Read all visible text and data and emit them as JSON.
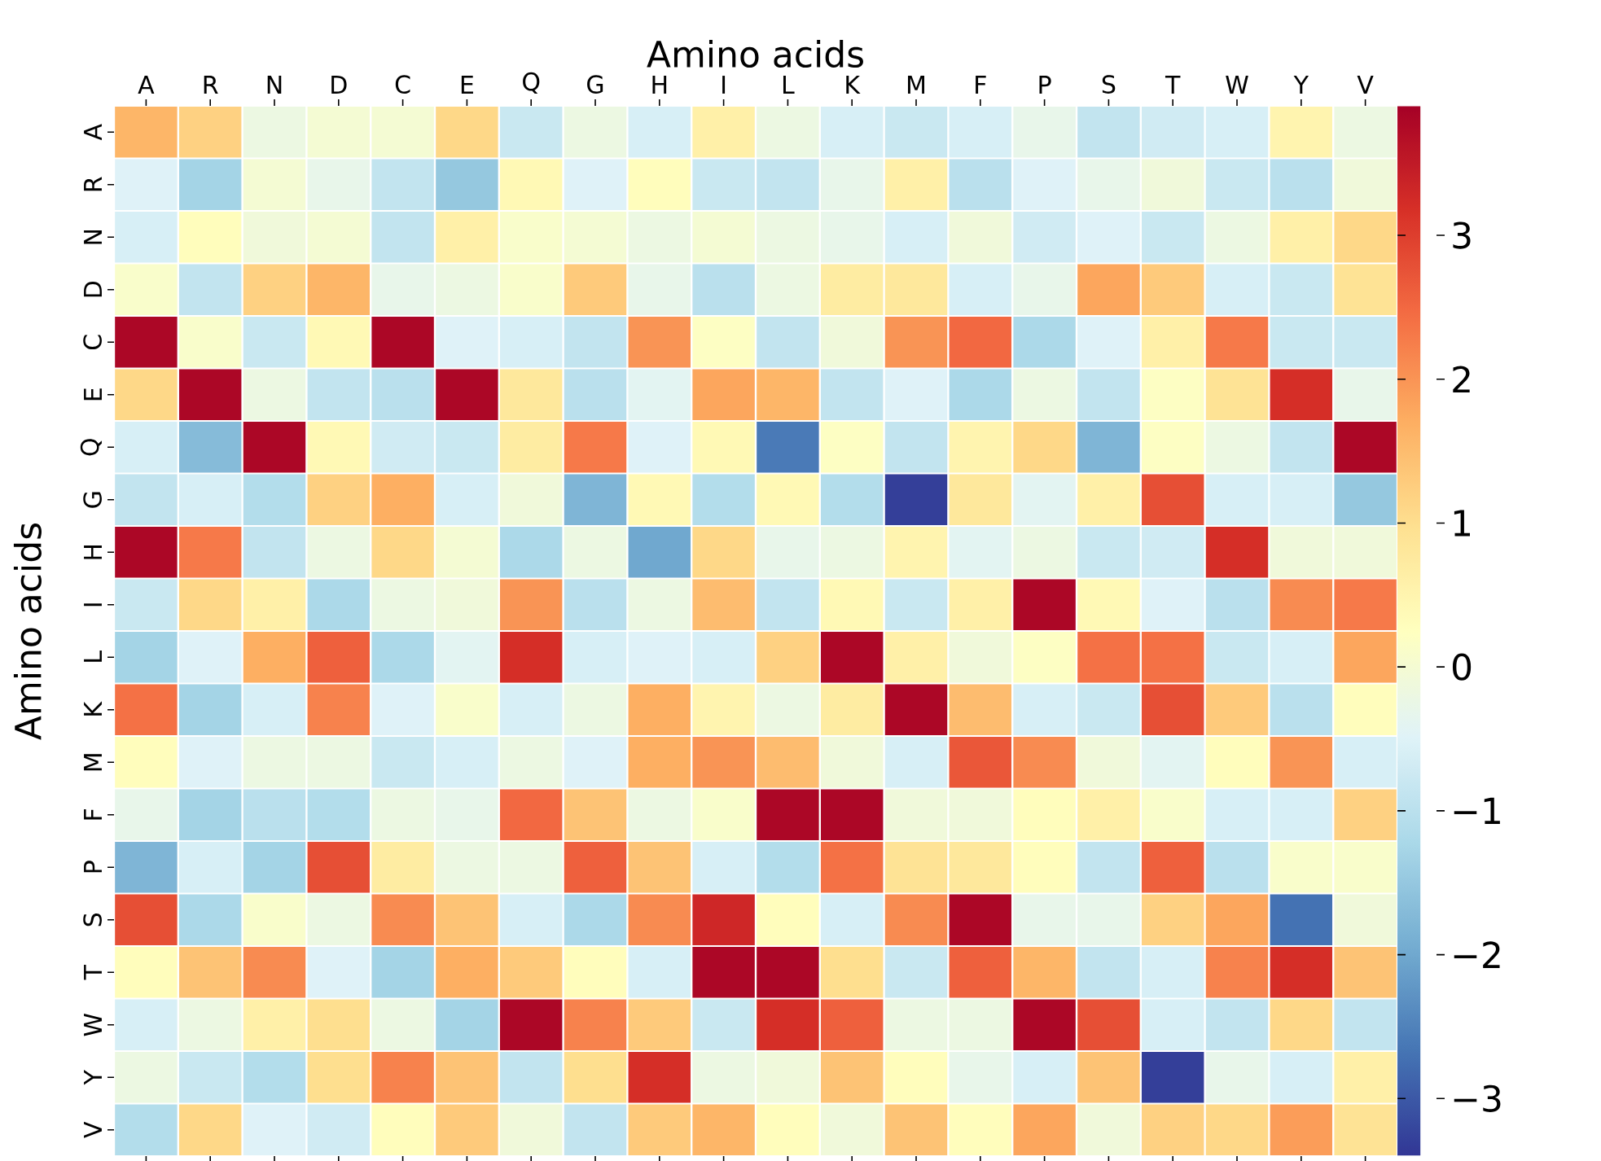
{
  "chart_data": {
    "type": "heatmap",
    "xlabel": "Amino acids",
    "ylabel": "Amino acids",
    "categories": [
      "A",
      "R",
      "N",
      "D",
      "C",
      "E",
      "Q",
      "G",
      "H",
      "I",
      "L",
      "K",
      "M",
      "F",
      "P",
      "S",
      "T",
      "W",
      "Y",
      "V"
    ],
    "y_categories": [
      "A",
      "R",
      "N",
      "D",
      "C",
      "E",
      "Q",
      "G",
      "H",
      "I",
      "L",
      "K",
      "M",
      "F",
      "P",
      "S",
      "T",
      "W",
      "Y",
      "V"
    ],
    "cells": [
      [
        1.6,
        1.2,
        -0.2,
        0,
        0,
        1.1,
        -0.8,
        -0.2,
        -0.6,
        0.6,
        -0.2,
        -0.6,
        -0.8,
        -0.6,
        -0.3,
        -0.9,
        -0.7,
        -0.6,
        0.5,
        -0.2
      ],
      [
        -0.5,
        -1.3,
        0,
        -0.3,
        -0.9,
        -1.5,
        0.4,
        -0.5,
        0.3,
        -0.8,
        -0.9,
        -0.3,
        0.6,
        -1.0,
        -0.5,
        -0.3,
        -0.1,
        -0.8,
        -1.0,
        -0.1
      ],
      [
        -0.6,
        0.3,
        -0.1,
        0,
        -0.9,
        0.6,
        0.1,
        0,
        -0.2,
        0,
        -0.2,
        -0.3,
        -0.6,
        -0.1,
        -0.7,
        -0.5,
        -0.8,
        -0.2,
        0.6,
        1.1
      ],
      [
        0.1,
        -0.9,
        1.2,
        1.6,
        -0.3,
        -0.2,
        0.1,
        1.3,
        -0.3,
        -1.0,
        -0.2,
        0.7,
        0.8,
        -0.6,
        -0.3,
        1.8,
        1.3,
        -0.6,
        -0.8,
        0.9
      ],
      [
        3.8,
        0.1,
        -0.8,
        0.4,
        3.8,
        -0.5,
        -0.6,
        -0.9,
        2.0,
        0.2,
        -0.9,
        -0.1,
        2.0,
        2.5,
        -1.2,
        -0.5,
        0.6,
        2.3,
        -0.8,
        -0.8
      ],
      [
        1.1,
        3.8,
        -0.2,
        -0.9,
        -1.0,
        3.8,
        0.8,
        -1.0,
        -0.4,
        1.8,
        1.6,
        -0.9,
        -0.5,
        -1.2,
        -0.2,
        -0.9,
        0.2,
        0.9,
        3.2,
        -0.3
      ],
      [
        -0.6,
        -1.7,
        3.8,
        0.4,
        -0.7,
        -0.8,
        0.7,
        2.3,
        -0.5,
        0.4,
        -2.6,
        0.2,
        -0.9,
        0.5,
        1.1,
        -1.8,
        0.2,
        -0.2,
        -0.9,
        3.8
      ],
      [
        -0.9,
        -0.6,
        -1.1,
        1.2,
        1.7,
        -0.6,
        -0.1,
        -1.8,
        0.4,
        -1.1,
        0.4,
        -1.1,
        -3.3,
        0.8,
        -0.4,
        0.6,
        2.8,
        -0.6,
        -0.6,
        -1.5
      ],
      [
        3.8,
        2.3,
        -0.9,
        -0.2,
        1.1,
        0,
        -1.2,
        -0.2,
        -2.0,
        1.1,
        -0.3,
        -0.2,
        0.5,
        -0.4,
        -0.2,
        -0.8,
        -0.7,
        3.2,
        -0.1,
        -0.1
      ],
      [
        -0.8,
        1.1,
        0.6,
        -1.2,
        -0.2,
        -0.1,
        2.0,
        -1.0,
        -0.2,
        1.5,
        -0.9,
        0.4,
        -0.8,
        0.6,
        3.8,
        0.4,
        -0.5,
        -1.0,
        2.1,
        2.3
      ],
      [
        -1.3,
        -0.5,
        1.7,
        2.6,
        -1.2,
        -0.4,
        3.2,
        -0.6,
        -0.5,
        -0.6,
        1.2,
        3.8,
        0.6,
        -0.1,
        0.2,
        2.4,
        2.4,
        -0.8,
        -0.6,
        1.8
      ],
      [
        2.4,
        -1.3,
        -0.6,
        2.2,
        -0.5,
        0.1,
        -0.6,
        -0.2,
        1.7,
        0.5,
        -0.2,
        0.7,
        3.8,
        1.5,
        -0.6,
        -0.8,
        2.8,
        1.3,
        -1.0,
        0.3
      ],
      [
        0.3,
        -0.5,
        -0.2,
        -0.2,
        -0.8,
        -0.6,
        -0.2,
        -0.5,
        1.7,
        2.0,
        1.5,
        -0.1,
        -0.6,
        2.7,
        2.1,
        -0.1,
        -0.4,
        0.3,
        2.0,
        -0.6
      ],
      [
        -0.3,
        -1.3,
        -1.0,
        -1.1,
        -0.2,
        -0.3,
        2.5,
        1.4,
        -0.2,
        0.1,
        3.8,
        3.8,
        -0.1,
        -0.1,
        0.3,
        0.6,
        0.1,
        -0.6,
        -0.6,
        1.2
      ],
      [
        -1.8,
        -0.6,
        -1.3,
        2.8,
        0.7,
        -0.2,
        -0.2,
        2.6,
        1.4,
        -0.6,
        -1.1,
        2.4,
        0.9,
        0.8,
        0.3,
        -0.9,
        2.6,
        -1.0,
        0.1,
        0.1
      ],
      [
        2.8,
        -1.2,
        0.1,
        -0.2,
        2.1,
        1.4,
        -0.6,
        -1.2,
        2.1,
        3.3,
        0.3,
        -0.6,
        2.1,
        3.8,
        -0.3,
        -0.3,
        1.2,
        1.8,
        -2.7,
        -0.1
      ],
      [
        0.3,
        1.4,
        2.1,
        -0.5,
        -1.3,
        1.7,
        1.3,
        0.3,
        -0.6,
        3.8,
        3.8,
        1.0,
        -0.8,
        2.6,
        1.6,
        -0.9,
        -0.6,
        2.2,
        3.2,
        1.4
      ],
      [
        -0.6,
        -0.2,
        0.6,
        1.0,
        -0.2,
        -1.3,
        3.8,
        2.2,
        1.3,
        -0.8,
        3.2,
        2.6,
        -0.2,
        -0.2,
        3.8,
        2.8,
        -0.6,
        -0.9,
        1.1,
        -0.9
      ],
      [
        -0.2,
        -0.8,
        -1.1,
        1.0,
        2.2,
        1.4,
        -0.9,
        1.0,
        3.2,
        -0.2,
        -0.1,
        1.4,
        0.3,
        -0.3,
        -0.6,
        1.4,
        -3.3,
        -0.3,
        -0.6,
        0.6
      ],
      [
        -1.1,
        1.1,
        -0.5,
        -0.7,
        0.3,
        1.3,
        -0.1,
        -0.9,
        1.3,
        1.6,
        0.3,
        -0.1,
        1.4,
        0.3,
        1.8,
        -0.1,
        1.2,
        1.1,
        1.9,
        0.9
      ]
    ],
    "clim": [
      -3.4,
      3.9
    ],
    "cticks": [
      {
        "value": -3,
        "label": "−3"
      },
      {
        "value": -2,
        "label": "−2"
      },
      {
        "value": -1,
        "label": "−1"
      },
      0,
      1,
      2,
      3
    ]
  }
}
